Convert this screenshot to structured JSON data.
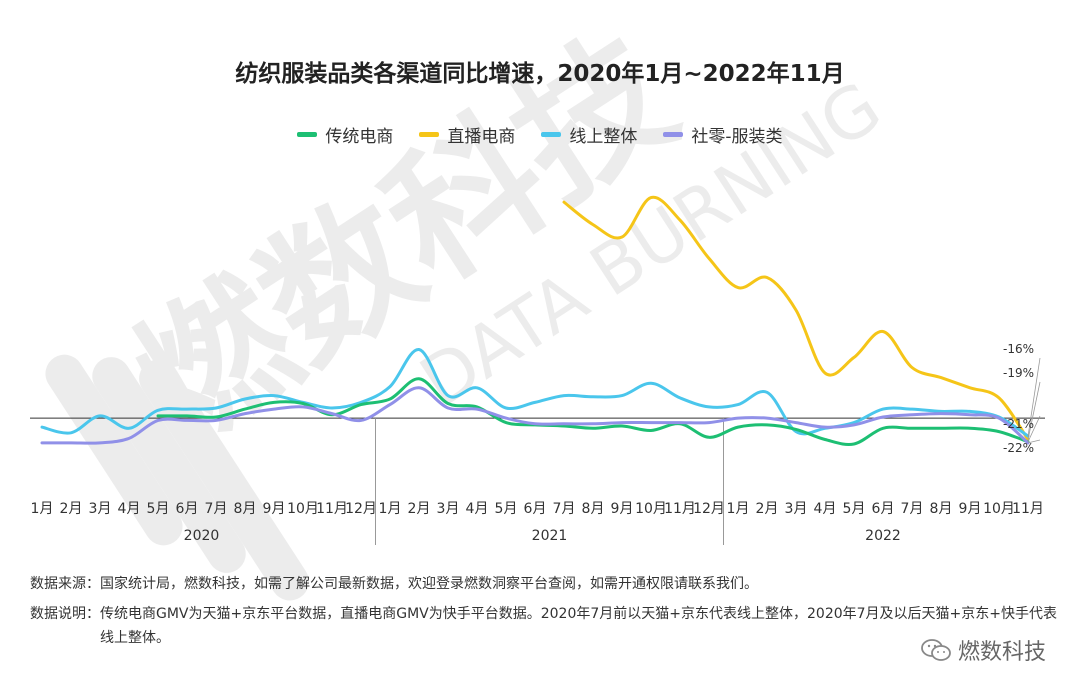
{
  "header": {
    "title": "纺织服装品类各渠道同比增速，2020年1月~2022年11月"
  },
  "watermark": {
    "main": "燃数科技",
    "sub": "DATA BURNING"
  },
  "colors": {
    "series_0": "#1dbf73",
    "series_1": "#f5c518",
    "series_2": "#4ac6ec",
    "series_3": "#9090e8",
    "axis": "#333333"
  },
  "chart_data": {
    "type": "line",
    "title": "纺织服装品类各渠道同比增速，2020年1月~2022年11月",
    "xlabel": "",
    "ylabel": "",
    "grid": false,
    "legend_position": "top",
    "x": [
      "1月",
      "2月",
      "3月",
      "4月",
      "5月",
      "6月",
      "7月",
      "8月",
      "9月",
      "10月",
      "11月",
      "12月",
      "1月",
      "2月",
      "3月",
      "4月",
      "5月",
      "6月",
      "7月",
      "8月",
      "9月",
      "10月",
      "11月",
      "12月",
      "1月",
      "2月",
      "3月",
      "4月",
      "5月",
      "6月",
      "7月",
      "8月",
      "9月",
      "10月",
      "11月"
    ],
    "year_groups": [
      {
        "label": "2020",
        "start": 0,
        "end": 11
      },
      {
        "label": "2021",
        "start": 12,
        "end": 23
      },
      {
        "label": "2022",
        "start": 24,
        "end": 34
      }
    ],
    "series": [
      {
        "name": "传统电商",
        "values": [
          null,
          null,
          null,
          null,
          2,
          2,
          1,
          8,
          14,
          13,
          3,
          12,
          17,
          35,
          13,
          10,
          -4,
          -6,
          -7,
          -9,
          -7,
          -11,
          -5,
          -17,
          -8,
          -6,
          -10,
          -19,
          -23,
          -9,
          -9,
          -9,
          -9,
          -12,
          -21
        ]
      },
      {
        "name": "直播电商",
        "values": [
          null,
          null,
          null,
          null,
          null,
          null,
          null,
          null,
          null,
          null,
          null,
          null,
          null,
          null,
          null,
          null,
          null,
          null,
          192,
          172,
          161,
          196,
          176,
          142,
          116,
          125,
          96,
          40,
          54,
          77,
          45,
          36,
          27,
          18,
          -19
        ]
      },
      {
        "name": "线上整体",
        "values": [
          -8,
          -13,
          2,
          -9,
          7,
          8,
          9,
          17,
          20,
          14,
          9,
          14,
          28,
          61,
          20,
          27,
          9,
          14,
          20,
          19,
          20,
          31,
          18,
          10,
          12,
          23,
          -12,
          -9,
          -4,
          8,
          8,
          6,
          6,
          1,
          -16
        ]
      },
      {
        "name": "社零-服装类",
        "values": [
          -22,
          -22,
          -22,
          -18,
          -2,
          -2,
          -2,
          4,
          8,
          10,
          4,
          -2,
          12,
          27,
          9,
          8,
          0,
          -5,
          -5,
          -5,
          -4,
          -4,
          -4,
          -4,
          0,
          0,
          -4,
          -8,
          -6,
          1,
          3,
          4,
          3,
          0,
          -22
        ]
      }
    ],
    "end_labels": [
      "-16%",
      "-19%",
      "-21%",
      "-22%"
    ],
    "ylim": [
      -55,
      225
    ]
  },
  "notes": {
    "source_label": "数据来源：",
    "source_text": "国家统计局，燃数科技，如需了解公司最新数据，欢迎登录燃数洞察平台查阅，如需开通权限请联系我们。",
    "desc_label": "数据说明：",
    "desc_text": "传统电商GMV为天猫+京东平台数据，直播电商GMV为快手平台数据。2020年7月前以天猫+京东代表线上整体，2020年7月及以后天猫+京东+快手代表线上整体。"
  },
  "brand": {
    "name": "燃数科技"
  }
}
